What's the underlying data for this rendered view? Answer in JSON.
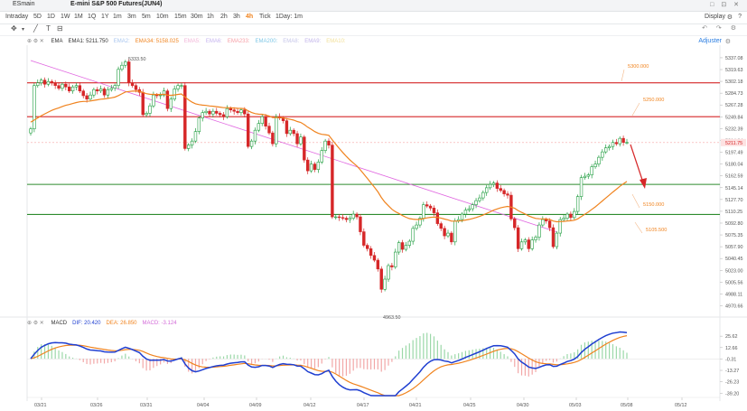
{
  "header": {
    "symbol": "ESmain",
    "title": "E-mini S&P 500 Futures(JUN4)",
    "window_icons": "□ ⊡ ✕"
  },
  "timeframes": [
    {
      "label": "Intraday",
      "active": false
    },
    {
      "label": "5D",
      "active": false
    },
    {
      "label": "1D",
      "active": false
    },
    {
      "label": "1W",
      "active": false
    },
    {
      "label": "1M",
      "active": false
    },
    {
      "label": "1Q",
      "active": false
    },
    {
      "label": "1Y",
      "active": false
    },
    {
      "label": "1m",
      "active": false
    },
    {
      "label": "3m",
      "active": false
    },
    {
      "label": "5m",
      "active": false
    },
    {
      "label": "10m",
      "active": false
    },
    {
      "label": "15m",
      "active": false
    },
    {
      "label": "30m",
      "active": false
    },
    {
      "label": "1h",
      "active": false
    },
    {
      "label": "2h",
      "active": false
    },
    {
      "label": "3h",
      "active": false
    },
    {
      "label": "4h",
      "active": true
    },
    {
      "label": "Tick",
      "active": false
    },
    {
      "label": "1Day: 1m",
      "active": false
    }
  ],
  "display_label": "Display",
  "adjuster_label": "Adjuster",
  "ema_legend": [
    {
      "text": "EMA",
      "color": "#333333"
    },
    {
      "text": "EMA1: 5211.750",
      "color": "#333333"
    },
    {
      "text": "EMA2:",
      "color": "#a9c6ef"
    },
    {
      "text": "EMA34: 5158.025",
      "color": "#f0831e"
    },
    {
      "text": "EMA5:",
      "color": "#f2b6d8"
    },
    {
      "text": "EMA6:",
      "color": "#c6b4ef"
    },
    {
      "text": "EMA233:",
      "color": "#f6a0a8"
    },
    {
      "text": "EMA200:",
      "color": "#7fc7e6"
    },
    {
      "text": "EMA8:",
      "color": "#c6c6e9"
    },
    {
      "text": "EMA9:",
      "color": "#c2b4ea"
    },
    {
      "text": "EMA10:",
      "color": "#f2e09a"
    }
  ],
  "macd_legend": [
    {
      "text": "MACD",
      "color": "#333333"
    },
    {
      "text": "DIF: 20.420",
      "color": "#1f3fd1"
    },
    {
      "text": "DEA: 26.850",
      "color": "#f0831e"
    },
    {
      "text": "MACD: -3.124",
      "color": "#d36bd8"
    }
  ],
  "chart_data": [
    {
      "type": "candlestick",
      "title": "E-mini S&P 500 Futures(JUN4)",
      "y_ticks": [
        "5337.08",
        "5319.63",
        "5302.18",
        "5284.73",
        "5267.28",
        "5249.84",
        "5232.39",
        "5214.94",
        "5197.49",
        "5180.04",
        "5162.59",
        "5145.14",
        "5127.70",
        "5110.25",
        "5092.80",
        "5075.35",
        "5057.90",
        "5040.45",
        "5023.00",
        "5005.56",
        "4988.11",
        "4970.66"
      ],
      "ylim": [
        4962,
        5345
      ],
      "x_ticks": [
        "03/21",
        "03/26",
        "03/31",
        "04/04",
        "04/09",
        "04/12",
        "04/17",
        "04/21",
        "04/25",
        "04/30",
        "05/03",
        "05/08",
        "05/12"
      ],
      "last_price": "5211.75",
      "annotations": {
        "high": "5333.50",
        "low": "4963.50",
        "target_labels": [
          "5300.000",
          "5250.000",
          "5150.000",
          "5105.500"
        ]
      },
      "horizontal_levels": [
        {
          "value": 5300,
          "color": "#d62728"
        },
        {
          "value": 5250,
          "color": "#d62728"
        },
        {
          "value": 5150,
          "color": "#2e8b2e"
        },
        {
          "value": 5105.5,
          "color": "#2e8b2e"
        }
      ],
      "trendline": {
        "from": [
          0,
          5333
        ],
        "to": [
          112,
          5094
        ],
        "color": "#e066e0"
      },
      "closes": [
        5232,
        5296,
        5300,
        5304,
        5298,
        5302,
        5300,
        5296,
        5292,
        5298,
        5294,
        5288,
        5294,
        5296,
        5288,
        5281,
        5276,
        5282,
        5290,
        5288,
        5291,
        5282,
        5290,
        5292,
        5296,
        5320,
        5326,
        5331,
        5300,
        5296,
        5290,
        5286,
        5253,
        5255,
        5266,
        5282,
        5281,
        5282,
        5288,
        5262,
        5276,
        5291,
        5296,
        5296,
        5203,
        5208,
        5214,
        5228,
        5248,
        5256,
        5258,
        5254,
        5258,
        5255,
        5253,
        5250,
        5262,
        5260,
        5258,
        5256,
        5260,
        5254,
        5206,
        5214,
        5230,
        5240,
        5250,
        5236,
        5226,
        5210,
        5250,
        5248,
        5244,
        5225,
        5230,
        5225,
        5210,
        5220,
        5186,
        5170,
        5180,
        5172,
        5183,
        5200,
        5214,
        5208,
        5102,
        5102,
        5101,
        5100,
        5098,
        5100,
        5106,
        5102,
        5080,
        5060,
        5055,
        5045,
        5038,
        5025,
        4995,
        5010,
        5030,
        5028,
        5050,
        5064,
        5054,
        5060,
        5066,
        5085,
        5090,
        5100,
        5120,
        5118,
        5115,
        5108,
        5092,
        5085,
        5074,
        5078,
        5065,
        5096,
        5098,
        5106,
        5112,
        5114,
        5120,
        5126,
        5130,
        5138,
        5145,
        5150,
        5152,
        5144,
        5141,
        5136,
        5134,
        5099,
        5086,
        5055,
        5065,
        5068,
        5055,
        5068,
        5072,
        5090,
        5098,
        5096,
        5086,
        5058,
        5078,
        5098,
        5100,
        5106,
        5101,
        5110,
        5132,
        5160,
        5162,
        5164,
        5176,
        5180,
        5190,
        5198,
        5204,
        5206,
        5212,
        5210,
        5218,
        5212,
        5212
      ],
      "ema34_start": 5242
    },
    {
      "type": "bar+line",
      "title": "MACD",
      "y_ticks": [
        "25.62",
        "12.66",
        "-0.31",
        "-13.27",
        "-26.23",
        "-39.20"
      ],
      "ylim": [
        -42,
        34
      ],
      "series": [
        {
          "name": "DIF",
          "color": "#1f3fd1",
          "last": 20.42
        },
        {
          "name": "DEA",
          "color": "#f0831e",
          "last": 26.85
        },
        {
          "name": "MACD",
          "color": "#d36bd8",
          "last": -3.124
        }
      ]
    }
  ]
}
